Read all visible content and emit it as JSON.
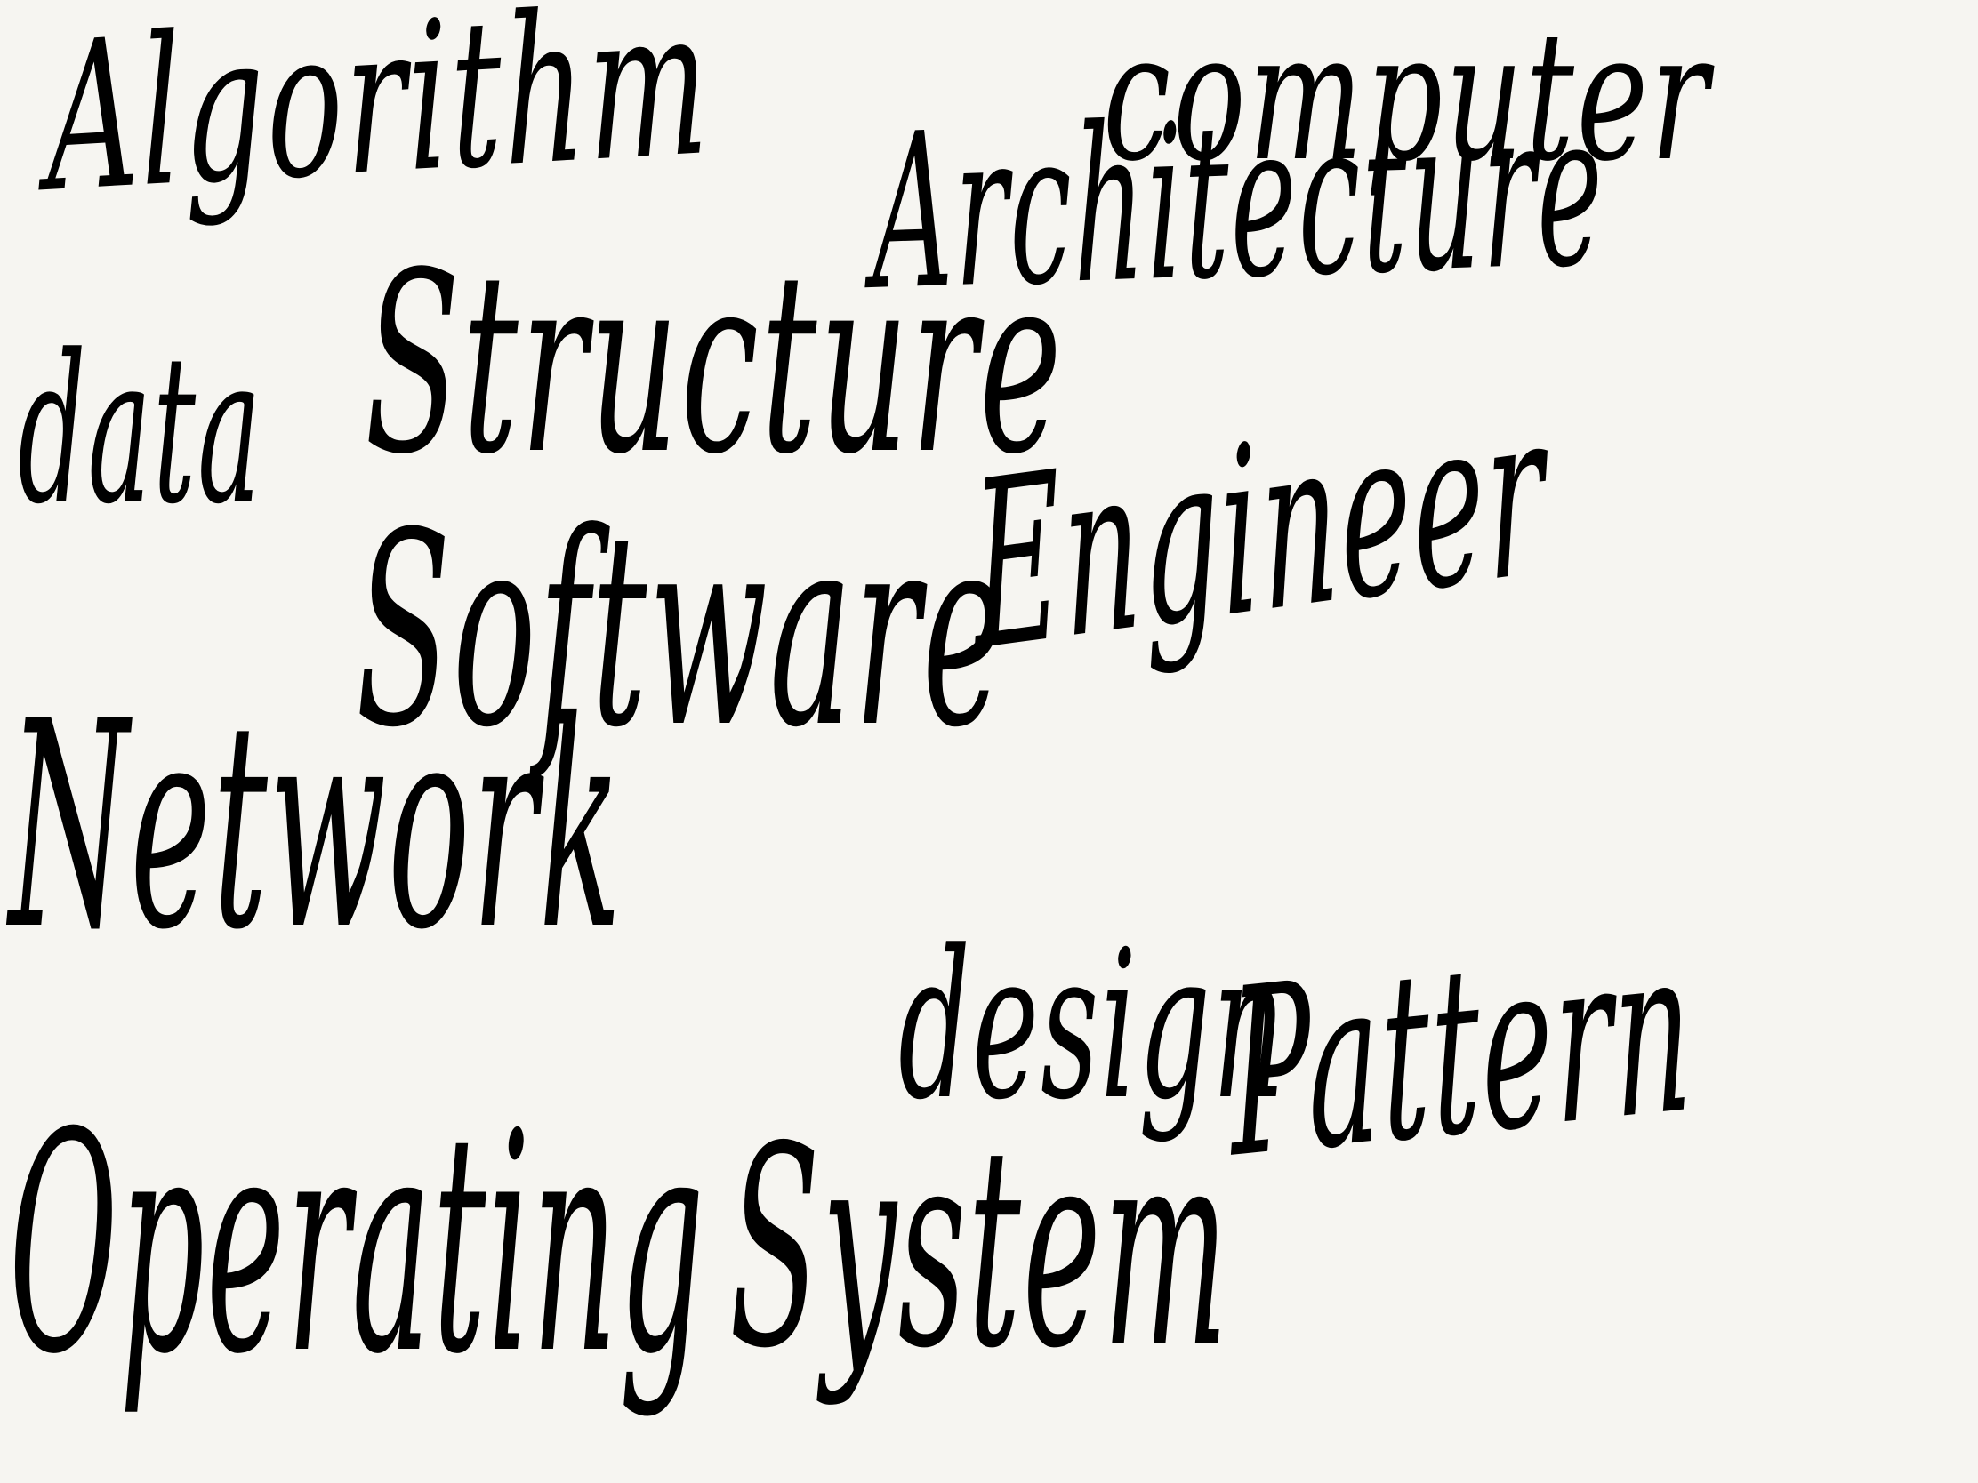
{
  "canvas": {
    "background_color": "#f6f5f1",
    "ink_color": "#000000"
  },
  "words": {
    "algorithm": "Algorithm",
    "computer": "computer",
    "architecture": "Architecture",
    "data": "data",
    "structure": "Structure",
    "software": "Software",
    "engineer": "Engineer",
    "network": "Network",
    "design": "design",
    "pattern": "Pattern",
    "operating": "Operating",
    "system": "System"
  }
}
